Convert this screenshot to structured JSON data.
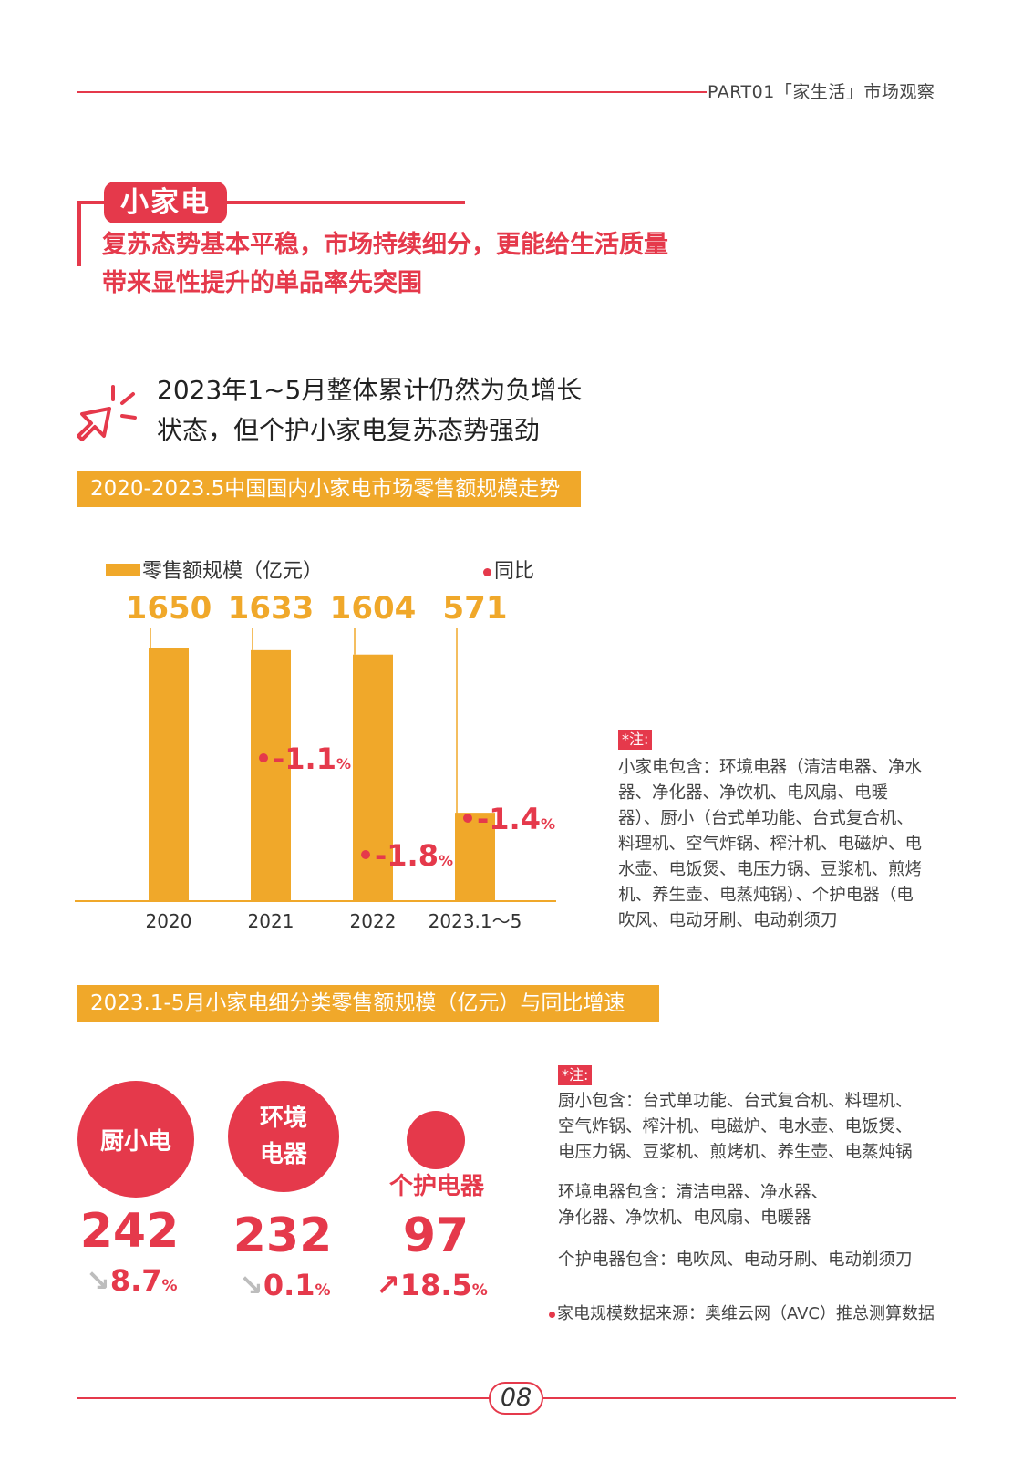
{
  "header": {
    "part_label": "PART01「家生活」市场观察"
  },
  "section": {
    "tag": "小家电",
    "subtitle_line1": "复苏态势基本平稳，市场持续细分，更能给生活质量",
    "subtitle_line2": "带来显性提升的单品率先突围"
  },
  "headline": {
    "line1": "2023年1~5月整体累计仍然为负增长",
    "line2": "状态，但个护小家电复苏态势强劲"
  },
  "banner1": "2020-2023.5中国国内小家电市场零售额规模走势",
  "legend": {
    "bar": "零售额规模（亿元）",
    "dot": "同比"
  },
  "chart_data": {
    "type": "bar",
    "categories": [
      "2020",
      "2021",
      "2022",
      "2023.1～5"
    ],
    "values": [
      1650,
      1633,
      1604,
      571
    ],
    "value_labels": [
      "1650",
      "1633",
      "1604",
      "571"
    ],
    "yoy": [
      null,
      "-1.1",
      "-1.8",
      "-1.4"
    ],
    "yoy_unit": "%",
    "colors": {
      "bar": "#f0a82a",
      "yoy": "#e5394b"
    }
  },
  "note1": {
    "tag": "*注:",
    "lines": [
      "小家电包含：环境电器（清洁电器、净水",
      "器、净化器、净饮机、电风扇、电暖",
      "器）、厨小（台式单功能、台式复合机、",
      "料理机、空气炸锅、榨汁机、电磁炉、电",
      "水壶、电饭煲、电压力锅、豆浆机、煎烤",
      "机、养生壶、电蒸炖锅）、个护电器（电",
      "吹风、电动牙刷、电动剃须刀"
    ]
  },
  "banner2": "2023.1-5月小家电细分类零售额规模（亿元）与同比增速",
  "categories": [
    {
      "name": "厨小电",
      "value": "242",
      "change": "8.7",
      "unit": "%",
      "direction": "down"
    },
    {
      "name_line1": "环境",
      "name_line2": "电器",
      "value": "232",
      "change": "0.1",
      "unit": "%",
      "direction": "down"
    },
    {
      "name": "个护电器",
      "value": "97",
      "change": "18.5",
      "unit": "%",
      "direction": "up"
    }
  ],
  "note2": {
    "tag": "*注:",
    "kitchen": [
      "厨小包含：台式单功能、台式复合机、料理机、",
      "空气炸锅、榨汁机、电磁炉、电水壶、电饭煲、",
      "电压力锅、豆浆机、煎烤机、养生壶、电蒸炖锅"
    ],
    "env": [
      "环境电器包含：清洁电器、净水器、",
      "净化器、净饮机、电风扇、电暖器"
    ],
    "personal": [
      "个护电器包含：电吹风、电动牙刷、电动剃须刀"
    ]
  },
  "source": "家电规模数据来源：奥维云网（AVC）推总测算数据",
  "footer": {
    "page": "08"
  }
}
